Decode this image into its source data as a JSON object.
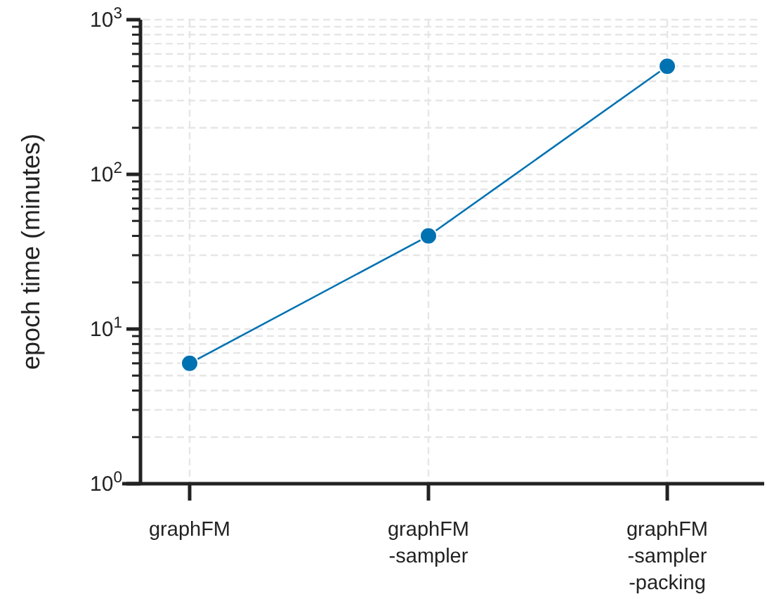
{
  "chart_data": {
    "type": "line",
    "ylabel": "epoch time (minutes)",
    "categories": [
      "graphFM",
      "graphFM\n-sampler",
      "graphFM\n-sampler\n-packing"
    ],
    "values": [
      6,
      40,
      500
    ],
    "color": "#0072b2",
    "log": true,
    "grid": true,
    "marker": "circle",
    "line_style": "solid",
    "ylim": [
      1,
      1000
    ],
    "yticks": [
      {
        "value": 1,
        "label": "10$^{0}$"
      },
      {
        "value": 10,
        "label": "10$^{1}$"
      },
      {
        "value": 100,
        "label": "10$^{2}$"
      },
      {
        "value": 1000,
        "label": "10$^{3}$"
      }
    ]
  }
}
